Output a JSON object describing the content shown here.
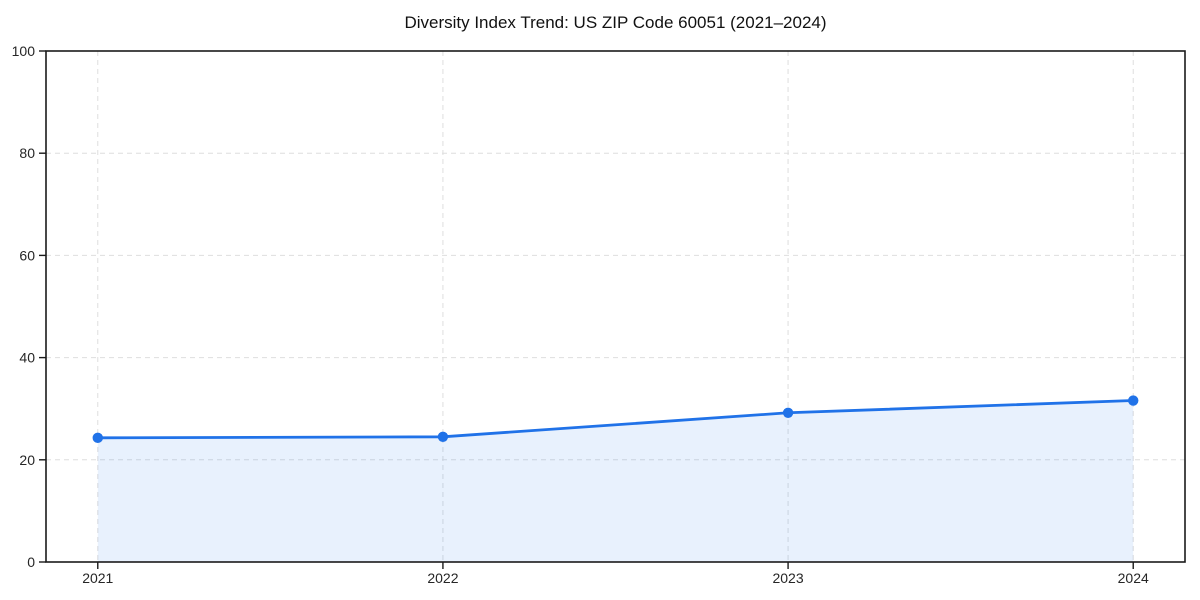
{
  "chart_data": {
    "type": "area",
    "title": "Diversity Index Trend: US ZIP Code 60051 (2021–2024)",
    "x": [
      2021,
      2022,
      2023,
      2024
    ],
    "xtick_labels": [
      "2021",
      "2022",
      "2023",
      "2024"
    ],
    "series": [
      {
        "name": "Diversity Index",
        "values": [
          24.3,
          24.5,
          29.2,
          31.6
        ]
      }
    ],
    "xlabel": "",
    "ylabel": "",
    "ylim": [
      0,
      100
    ],
    "yticks": [
      0,
      20,
      40,
      60,
      80,
      100
    ],
    "x_margin_fraction": 0.05,
    "grid": true,
    "grid_style": "dashed",
    "legend": "none",
    "colors": {
      "line": "#2072e8",
      "marker": "#2072e8",
      "fill": "#2072e8",
      "fill_opacity": 0.1,
      "grid": "#dedede",
      "axis": "#1a1a1a",
      "tick_label": "#262626",
      "title": "#111111",
      "background": "#ffffff"
    }
  }
}
